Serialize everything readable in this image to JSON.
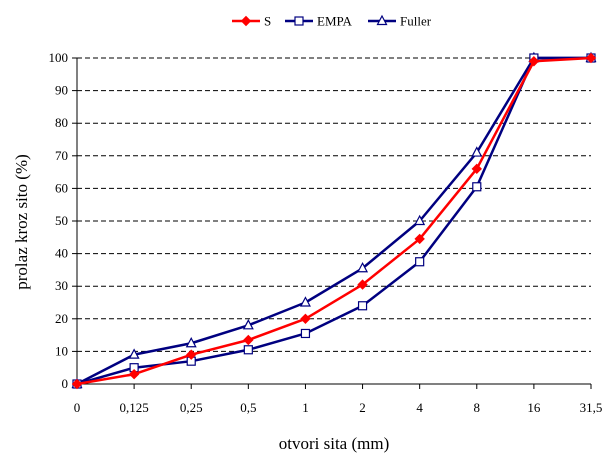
{
  "chart_data": {
    "type": "line",
    "title": "",
    "xlabel": "otvori sita (mm)",
    "ylabel": "prolaz kroz sito (%)",
    "categories": [
      "0",
      "0,125",
      "0,25",
      "0,5",
      "1",
      "2",
      "4",
      "8",
      "16",
      "31,5"
    ],
    "ylim": [
      0,
      100
    ],
    "yticks": [
      0,
      10,
      20,
      30,
      40,
      50,
      60,
      70,
      80,
      90,
      100
    ],
    "grid": "horizontal dashed",
    "legend_position": "top",
    "series": [
      {
        "name": "S",
        "color": "#ff0000",
        "marker": "diamond",
        "values": [
          0,
          3,
          9,
          13.5,
          20,
          30.5,
          44.5,
          66,
          99,
          100
        ]
      },
      {
        "name": "EMPA",
        "color": "#000080",
        "marker": "square",
        "values": [
          0,
          5,
          7,
          10.5,
          15.5,
          24,
          37.5,
          60.5,
          100,
          100
        ]
      },
      {
        "name": "Fuller",
        "color": "#000080",
        "marker": "triangle",
        "values": [
          0,
          9,
          12.5,
          18,
          25,
          35.5,
          50,
          71,
          100,
          100
        ]
      }
    ]
  }
}
